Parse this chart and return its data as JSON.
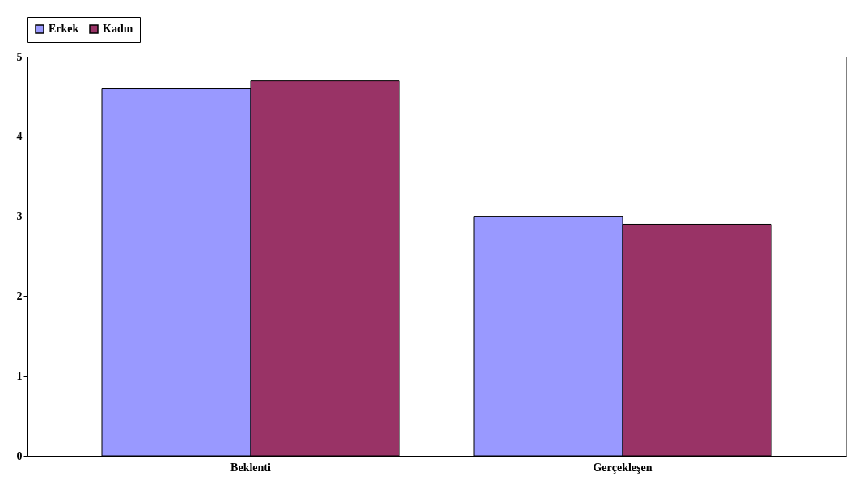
{
  "chart_data": {
    "type": "bar",
    "categories": [
      "Beklenti",
      "Gerçekleşen"
    ],
    "series": [
      {
        "name": "Erkek",
        "color": "#9999ff",
        "values": [
          4.6,
          3.0
        ]
      },
      {
        "name": "Kadın",
        "color": "#993366",
        "values": [
          4.7,
          2.9
        ]
      }
    ],
    "ylim": [
      0,
      5
    ],
    "yticks": [
      0,
      1,
      2,
      3,
      4,
      5
    ],
    "grid": false,
    "legend": "top"
  }
}
